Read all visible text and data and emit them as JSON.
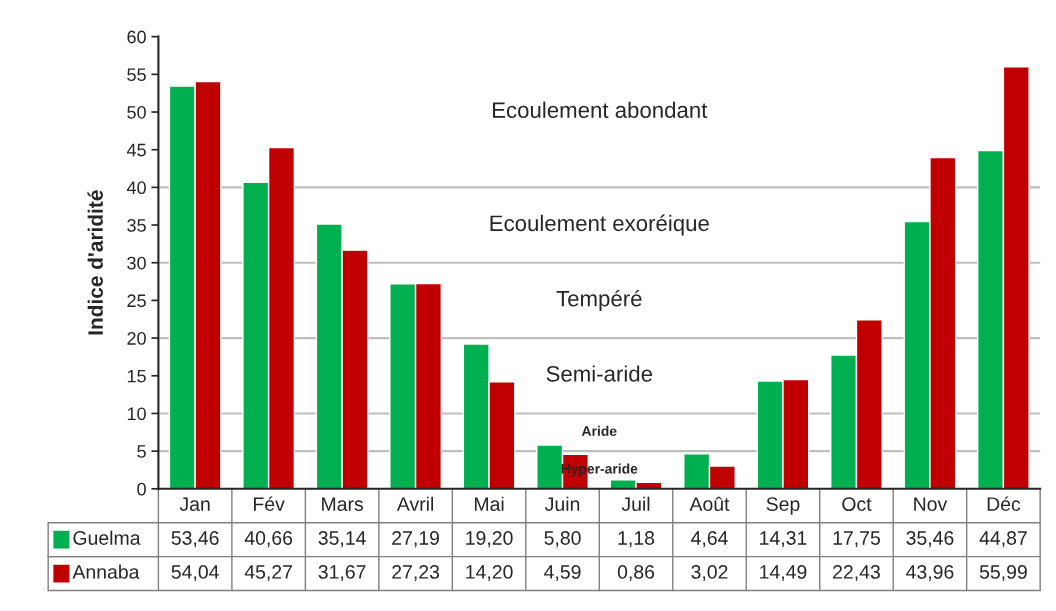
{
  "chart_data": {
    "type": "bar",
    "ylabel": "Indice d'aridité",
    "categories": [
      "Jan",
      "Fév",
      "Mars",
      "Avril",
      "Mai",
      "Juin",
      "Juil",
      "Août",
      "Sep",
      "Oct",
      "Nov",
      "Déc"
    ],
    "series": [
      {
        "name": "Guelma",
        "color": "#00b050",
        "values": [
          53.46,
          40.66,
          35.14,
          27.19,
          19.2,
          5.8,
          1.18,
          4.64,
          14.31,
          17.75,
          35.46,
          44.87
        ],
        "value_labels": [
          "53,46",
          "40,66",
          "35,14",
          "27,19",
          "19,20",
          "5,80",
          "1,18",
          "4,64",
          "14,31",
          "17,75",
          "35,46",
          "44,87"
        ]
      },
      {
        "name": "Annaba",
        "color": "#c00000",
        "values": [
          54.04,
          45.27,
          31.67,
          27.23,
          14.2,
          4.59,
          0.86,
          3.02,
          14.49,
          22.43,
          43.96,
          55.99
        ],
        "value_labels": [
          "54,04",
          "45,27",
          "31,67",
          "27,23",
          "14,20",
          "4,59",
          "0,86",
          "3,02",
          "14,49",
          "22,43",
          "43,96",
          "55,99"
        ]
      }
    ],
    "ylim": [
      0,
      60
    ],
    "yticks": [
      0,
      5,
      10,
      15,
      20,
      25,
      30,
      35,
      40,
      45,
      50,
      55,
      60
    ],
    "ref_lines": [
      {
        "axis": "y",
        "value": 5,
        "color": "#bfbfbf"
      },
      {
        "axis": "y",
        "value": 10,
        "color": "#bfbfbf"
      },
      {
        "axis": "y",
        "value": 20,
        "color": "#bfbfbf"
      },
      {
        "axis": "y",
        "value": 30,
        "color": "#bfbfbf"
      },
      {
        "axis": "y",
        "value": 40,
        "color": "#bfbfbf"
      }
    ],
    "annotations": [
      "Ecoulement abondant",
      "Ecoulement exoréique",
      "Tempéré",
      "Semi-aride",
      "Aride",
      "Hyper-aride"
    ],
    "legend": "bottom",
    "grid": false
  }
}
